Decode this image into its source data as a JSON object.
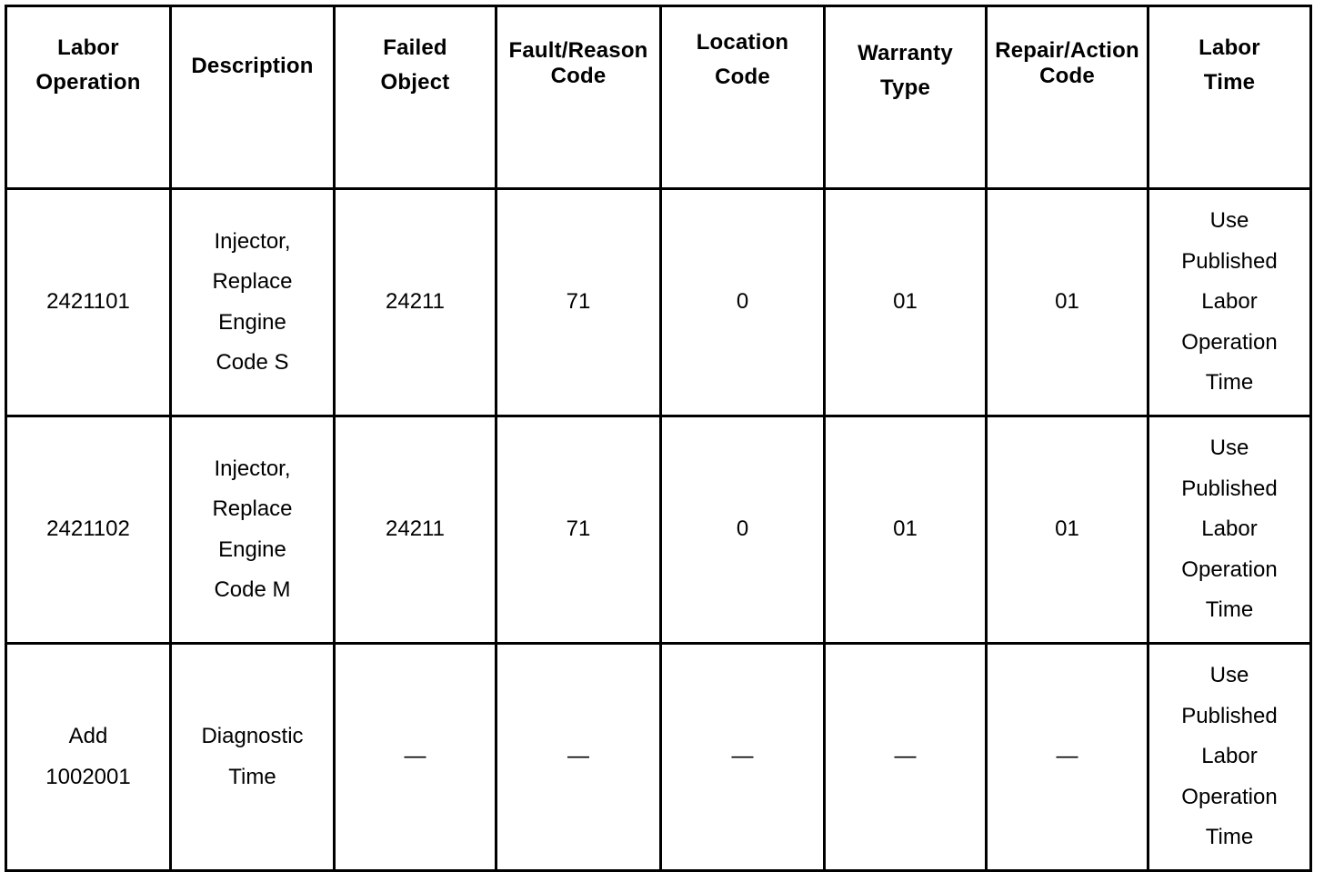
{
  "table": {
    "headers": [
      "Labor\nOperation",
      "Description",
      "Failed\nObject",
      "Fault/Reason\nCode",
      "Location\nCode",
      "Warranty\nType",
      "Repair/Action\nCode",
      "Labor\nTime"
    ],
    "rows": [
      [
        "2421101",
        "Injector,\nReplace\nEngine\nCode S",
        "24211",
        "71",
        "0",
        "01",
        "01",
        "Use\nPublished\nLabor\nOperation\nTime"
      ],
      [
        "2421102",
        "Injector,\nReplace\nEngine\nCode M",
        "24211",
        "71",
        "0",
        "01",
        "01",
        "Use\nPublished\nLabor\nOperation\nTime"
      ],
      [
        "Add\n1002001",
        "Diagnostic\nTime",
        "—",
        "—",
        "—",
        "—",
        "—",
        "Use\nPublished\nLabor\nOperation\nTime"
      ]
    ]
  }
}
